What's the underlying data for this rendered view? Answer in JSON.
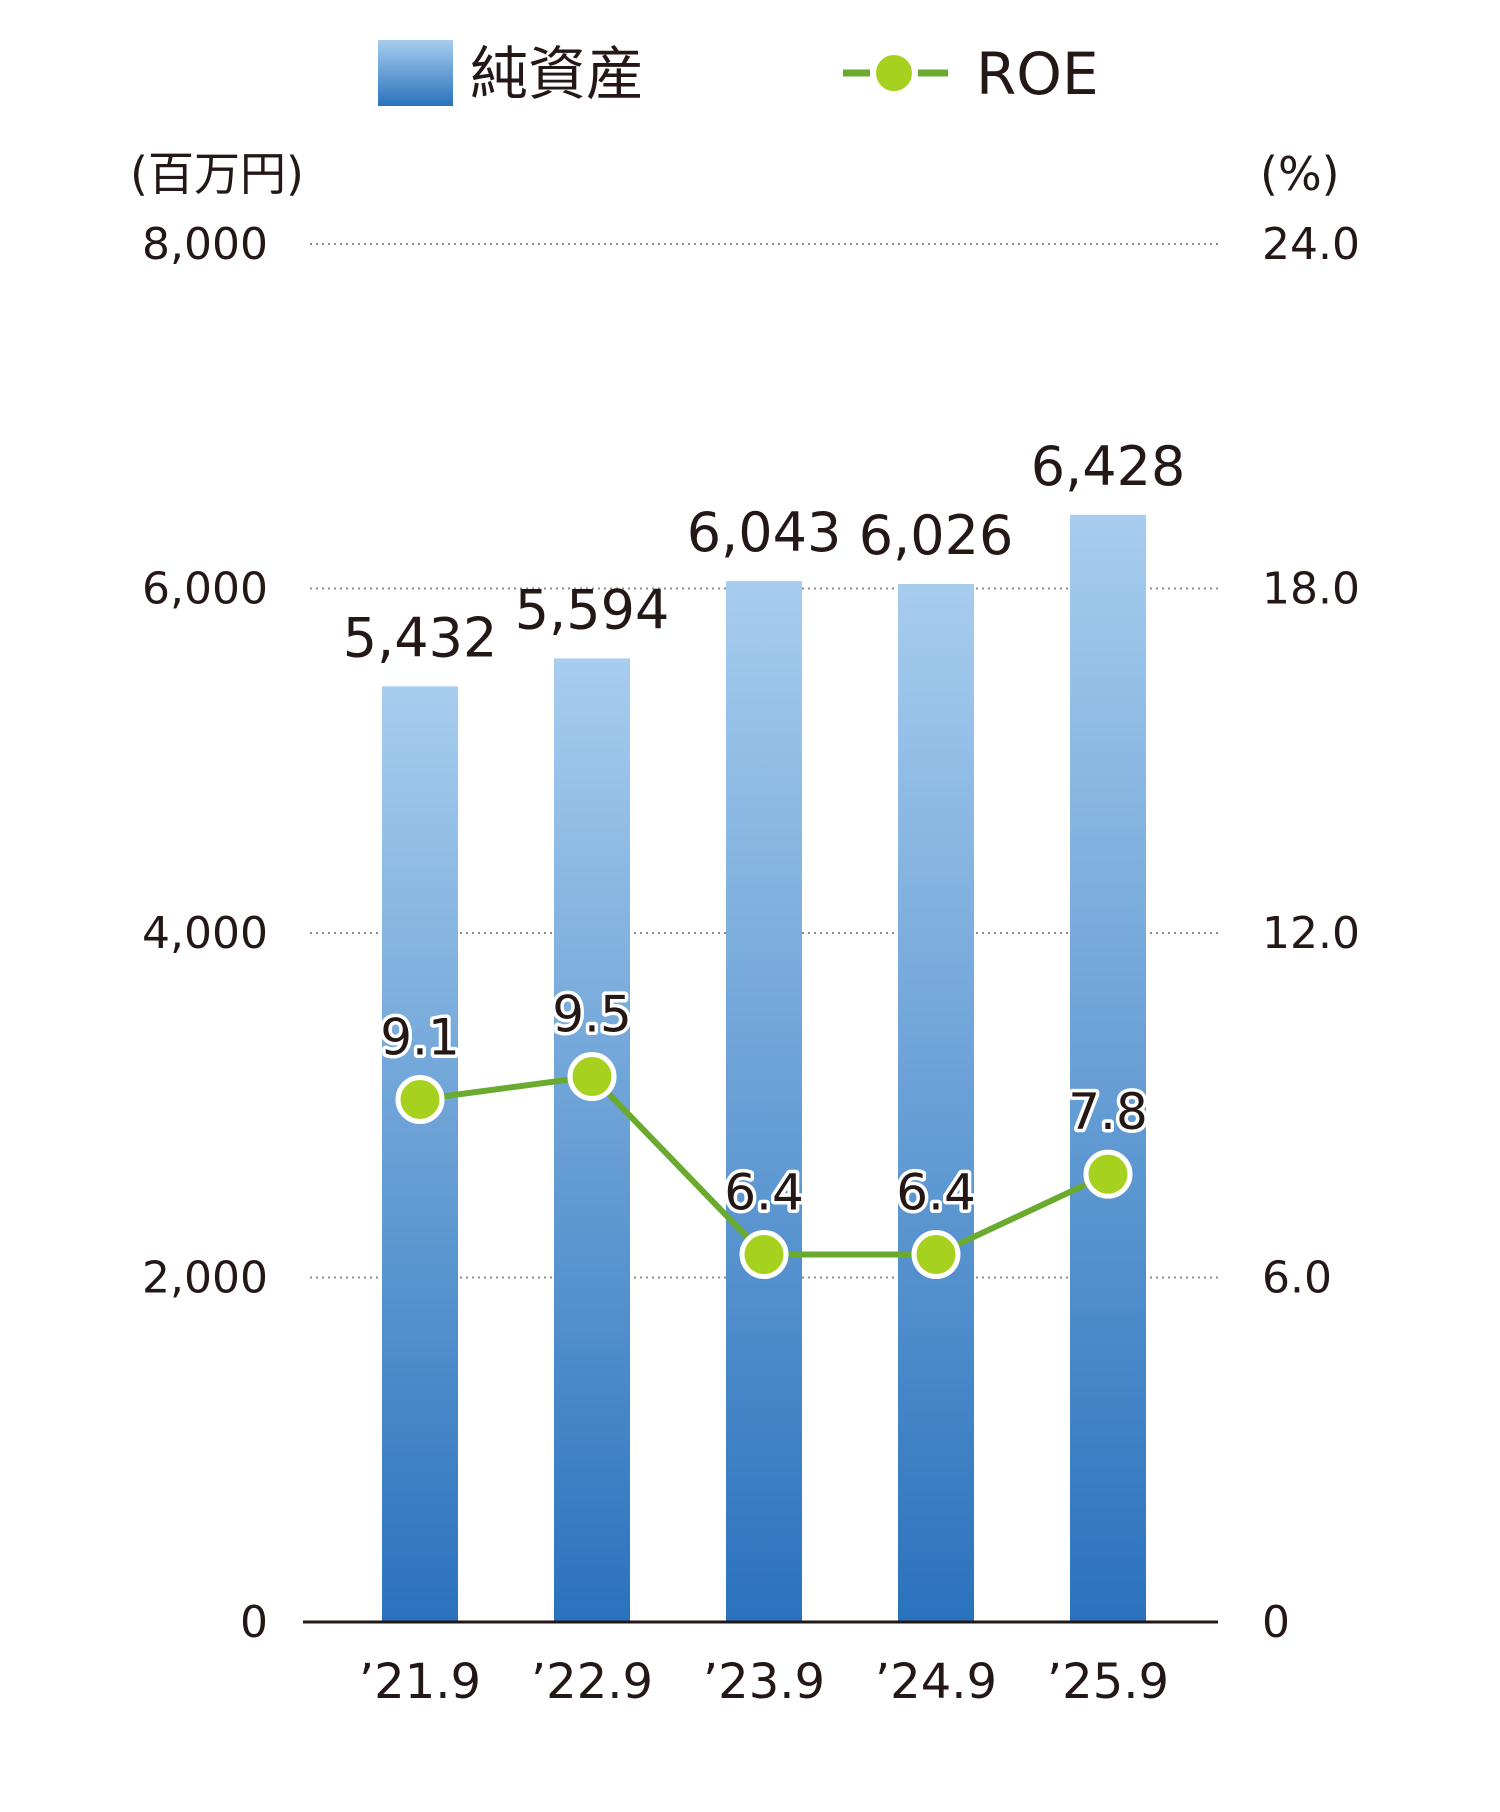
{
  "legend": {
    "bar_label": "純資産",
    "line_label": "ROE"
  },
  "colors": {
    "bar_top": "#a7cdee",
    "bar_bottom": "#2a72bd",
    "line": "#6aaa2f",
    "marker": "#a6d11e",
    "grid": "#8c8c8c",
    "axis": "#231815"
  },
  "chart_data": {
    "type": "bar",
    "categories": [
      "’21.9",
      "’22.9",
      "’23.9",
      "’24.9",
      "’25.9"
    ],
    "series": [
      {
        "name": "純資産",
        "type": "bar",
        "axis": "left",
        "values": [
          5432,
          5594,
          6043,
          6026,
          6428
        ],
        "labels": [
          "5,432",
          "5,594",
          "6,043",
          "6,026",
          "6,428"
        ]
      },
      {
        "name": "ROE",
        "type": "line",
        "axis": "right",
        "values": [
          9.1,
          9.5,
          6.4,
          6.4,
          7.8
        ],
        "labels": [
          "9.1",
          "9.5",
          "6.4",
          "6.4",
          "7.8"
        ]
      }
    ],
    "y_left": {
      "unit": "(百万円)",
      "range": [
        0,
        8000
      ],
      "ticks": [
        0,
        2000,
        4000,
        6000,
        8000
      ],
      "tick_labels": [
        "0",
        "2,000",
        "4,000",
        "6,000",
        "8,000"
      ]
    },
    "y_right": {
      "unit": "(%)",
      "range": [
        0,
        24
      ],
      "ticks": [
        0,
        6,
        12,
        18,
        24
      ],
      "tick_labels": [
        "0",
        "6.0",
        "12.0",
        "18.0",
        "24.0"
      ]
    },
    "grid": true,
    "grid_style": "dotted",
    "legend_position": "top"
  }
}
